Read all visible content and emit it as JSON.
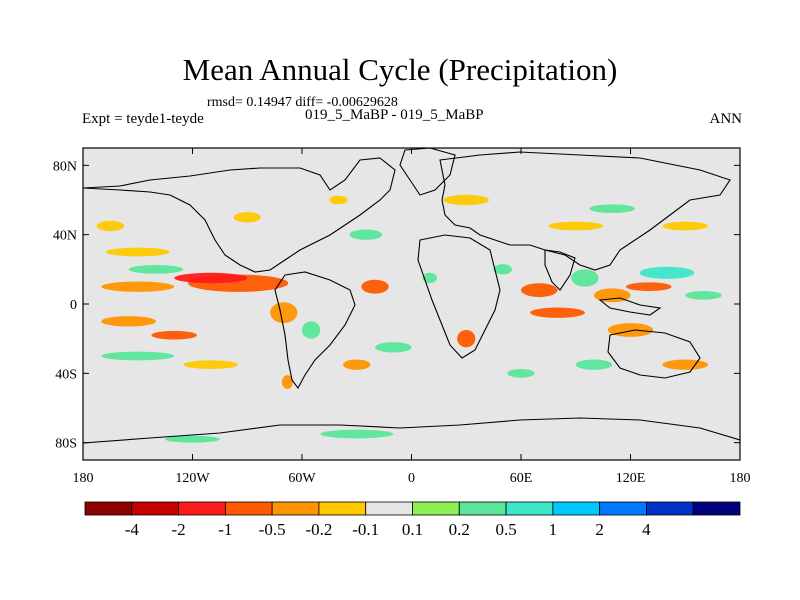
{
  "chart_data": {
    "type": "heatmap",
    "title": "Mean Annual Cycle (Precipitation)",
    "stats_text": "rmsd= 0.14947 diff= -0.00629628",
    "left_label": "Expt = teyde1-teyde",
    "center_label": "019_5_MaBP - 019_5_MaBP",
    "right_label": "ANN",
    "x_ticks": [
      {
        "lon": -180,
        "label": "180"
      },
      {
        "lon": -120,
        "label": "120W"
      },
      {
        "lon": -60,
        "label": "60W"
      },
      {
        "lon": 0,
        "label": "0"
      },
      {
        "lon": 60,
        "label": "60E"
      },
      {
        "lon": 120,
        "label": "120E"
      },
      {
        "lon": 180,
        "label": "180"
      }
    ],
    "y_ticks": [
      {
        "lat": 80,
        "label": "80N"
      },
      {
        "lat": 40,
        "label": "40N"
      },
      {
        "lat": 0,
        "label": "0"
      },
      {
        "lat": -40,
        "label": "40S"
      },
      {
        "lat": -80,
        "label": "80S"
      }
    ],
    "xlim": [
      -180,
      180
    ],
    "ylim": [
      -90,
      90
    ],
    "colorbar": {
      "colors": [
        "#8b0000",
        "#c80000",
        "#ff1a1a",
        "#ff5a00",
        "#ff9400",
        "#ffc800",
        "#e6e6e6",
        "#8cf052",
        "#5ae69a",
        "#3ce6c8",
        "#00c8ff",
        "#0078ff",
        "#0032c8",
        "#000080"
      ],
      "labels": [
        "-4",
        "-2",
        "-1",
        "-0.5",
        "-0.2",
        "-0.1",
        "0.1",
        "0.2",
        "0.5",
        "1",
        "2",
        "4"
      ]
    },
    "anomalies": [
      {
        "lon": -95,
        "lat": 12,
        "w": 55,
        "h": 10,
        "v": -0.8
      },
      {
        "lon": -110,
        "lat": 15,
        "w": 40,
        "h": 6,
        "v": -1.5
      },
      {
        "lon": -150,
        "lat": 10,
        "w": 40,
        "h": 6,
        "v": -0.3
      },
      {
        "lon": -140,
        "lat": 20,
        "w": 30,
        "h": 5,
        "v": 0.3
      },
      {
        "lon": -150,
        "lat": 30,
        "w": 35,
        "h": 5,
        "v": -0.15
      },
      {
        "lon": -155,
        "lat": -10,
        "w": 30,
        "h": 6,
        "v": -0.3
      },
      {
        "lon": -130,
        "lat": -18,
        "w": 25,
        "h": 5,
        "v": -0.6
      },
      {
        "lon": -150,
        "lat": -30,
        "w": 40,
        "h": 5,
        "v": 0.3
      },
      {
        "lon": -110,
        "lat": -35,
        "w": 30,
        "h": 5,
        "v": -0.2
      },
      {
        "lon": -165,
        "lat": 45,
        "w": 15,
        "h": 6,
        "v": -0.15
      },
      {
        "lon": -70,
        "lat": -5,
        "w": 15,
        "h": 12,
        "v": -0.4
      },
      {
        "lon": -55,
        "lat": -15,
        "w": 10,
        "h": 10,
        "v": 0.3
      },
      {
        "lon": -68,
        "lat": -45,
        "w": 6,
        "h": 8,
        "v": -0.5
      },
      {
        "lon": -40,
        "lat": 60,
        "w": 10,
        "h": 5,
        "v": -0.2
      },
      {
        "lon": -25,
        "lat": 40,
        "w": 18,
        "h": 6,
        "v": 0.25
      },
      {
        "lon": -20,
        "lat": 10,
        "w": 15,
        "h": 8,
        "v": -0.6
      },
      {
        "lon": -10,
        "lat": -25,
        "w": 20,
        "h": 6,
        "v": 0.3
      },
      {
        "lon": -30,
        "lat": -35,
        "w": 15,
        "h": 6,
        "v": -0.3
      },
      {
        "lon": 10,
        "lat": 15,
        "w": 8,
        "h": 6,
        "v": 0.3
      },
      {
        "lon": 30,
        "lat": -20,
        "w": 10,
        "h": 10,
        "v": -0.6
      },
      {
        "lon": 50,
        "lat": 20,
        "w": 10,
        "h": 6,
        "v": 0.25
      },
      {
        "lon": 70,
        "lat": 8,
        "w": 20,
        "h": 8,
        "v": -0.8
      },
      {
        "lon": 80,
        "lat": -5,
        "w": 30,
        "h": 6,
        "v": -0.6
      },
      {
        "lon": 95,
        "lat": 15,
        "w": 15,
        "h": 10,
        "v": 0.4
      },
      {
        "lon": 110,
        "lat": 5,
        "w": 20,
        "h": 8,
        "v": -0.5
      },
      {
        "lon": 140,
        "lat": 18,
        "w": 30,
        "h": 7,
        "v": 0.5
      },
      {
        "lon": 130,
        "lat": 10,
        "w": 25,
        "h": 5,
        "v": -0.8
      },
      {
        "lon": 160,
        "lat": 5,
        "w": 20,
        "h": 5,
        "v": 0.3
      },
      {
        "lon": 120,
        "lat": -15,
        "w": 25,
        "h": 8,
        "v": -0.3
      },
      {
        "lon": 150,
        "lat": -35,
        "w": 25,
        "h": 6,
        "v": -0.3
      },
      {
        "lon": 100,
        "lat": -35,
        "w": 20,
        "h": 6,
        "v": 0.3
      },
      {
        "lon": 90,
        "lat": 45,
        "w": 30,
        "h": 5,
        "v": -0.15
      },
      {
        "lon": 110,
        "lat": 55,
        "w": 25,
        "h": 5,
        "v": 0.25
      },
      {
        "lon": 30,
        "lat": 60,
        "w": 25,
        "h": 6,
        "v": -0.15
      },
      {
        "lon": 150,
        "lat": 45,
        "w": 25,
        "h": 5,
        "v": -0.2
      },
      {
        "lon": -30,
        "lat": -75,
        "w": 40,
        "h": 5,
        "v": 0.2
      },
      {
        "lon": -120,
        "lat": -78,
        "w": 30,
        "h": 4,
        "v": 0.3
      },
      {
        "lon": 60,
        "lat": -40,
        "w": 15,
        "h": 5,
        "v": 0.25
      },
      {
        "lon": -90,
        "lat": 50,
        "w": 15,
        "h": 6,
        "v": -0.2
      }
    ]
  }
}
